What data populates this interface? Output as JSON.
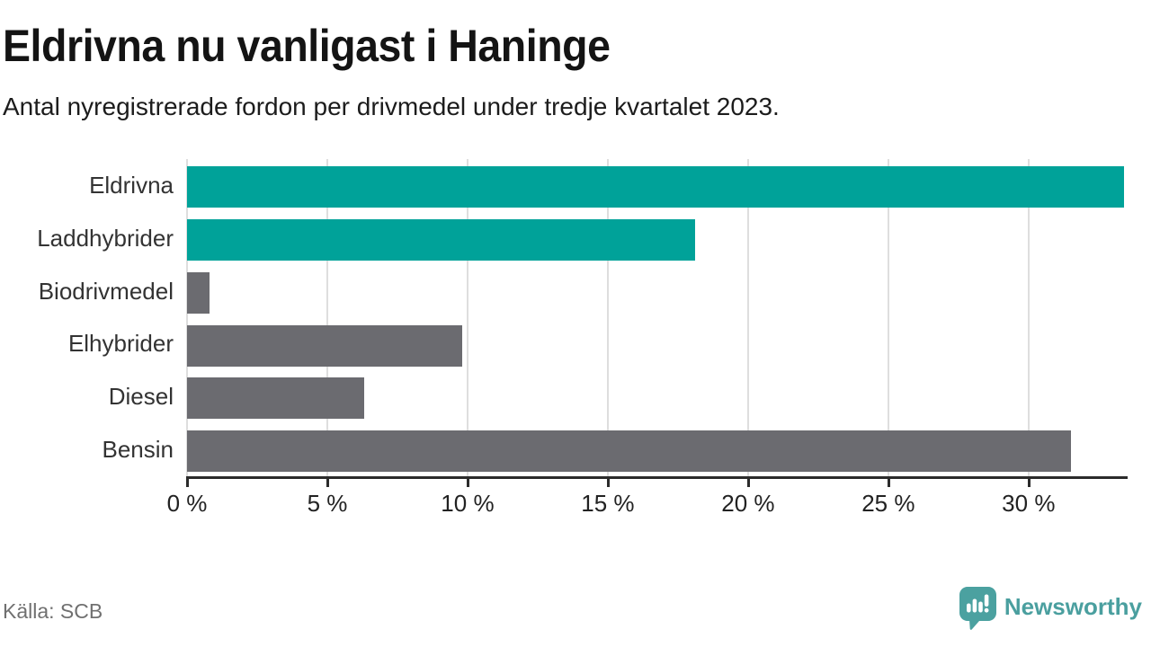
{
  "header": {
    "title": "Eldrivna nu vanligast i Haninge",
    "subtitle": "Antal nyregistrerade fordon per drivmedel under tredje kvartalet 2023."
  },
  "chart_data": {
    "type": "bar",
    "orientation": "horizontal",
    "title": "Eldrivna nu vanligast i Haninge",
    "subtitle": "Antal nyregistrerade fordon per drivmedel under tredje kvartalet 2023.",
    "categories": [
      "Eldrivna",
      "Laddhybrider",
      "Biodrivmedel",
      "Elhybrider",
      "Diesel",
      "Bensin"
    ],
    "values": [
      33.4,
      18.1,
      0.8,
      9.8,
      6.3,
      31.5
    ],
    "unit": "%",
    "bar_colors": [
      "#00a299",
      "#00a299",
      "#6b6b70",
      "#6b6b70",
      "#6b6b70",
      "#6b6b70"
    ],
    "highlight_color": "#00a299",
    "base_color": "#6b6b70",
    "xlim": [
      0,
      33.5
    ],
    "xticks": [
      0,
      5,
      10,
      15,
      20,
      25,
      30
    ],
    "xtick_labels": [
      "0 %",
      "5 %",
      "10 %",
      "15 %",
      "20 %",
      "25 %",
      "30 %"
    ],
    "grid": true,
    "gridline_color": "#dedede",
    "legend_position": "none"
  },
  "footer": {
    "source": "Källa: SCB",
    "brand": "Newsworthy",
    "brand_color": "#4a9f9f"
  }
}
